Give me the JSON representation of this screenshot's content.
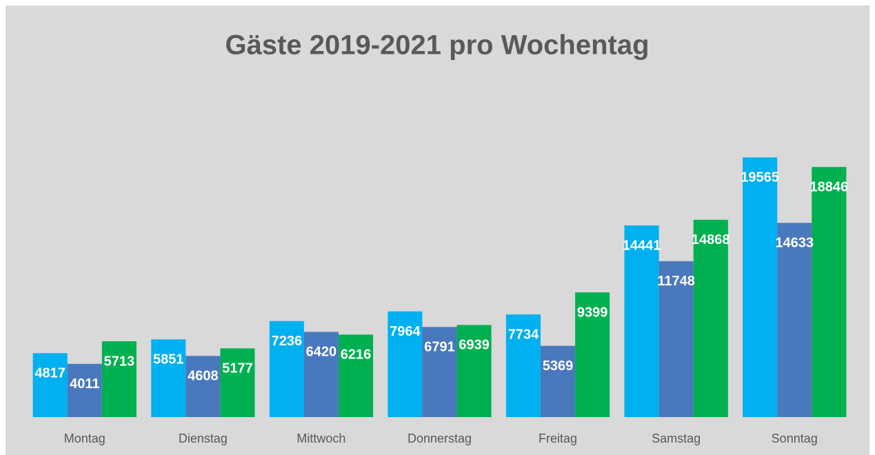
{
  "chart_data": {
    "type": "bar",
    "title": "Gäste 2019-2021 pro Wochentag",
    "categories": [
      "Montag",
      "Dienstag",
      "Mittwoch",
      "Donnerstag",
      "Freitag",
      "Samstag",
      "Sonntag"
    ],
    "series": [
      {
        "color": "#00b0f0",
        "values": [
          4817,
          5851,
          7236,
          7964,
          7734,
          14441,
          19565
        ]
      },
      {
        "color": "#4a78bd",
        "values": [
          4011,
          4608,
          6420,
          6791,
          5369,
          11748,
          14633
        ]
      },
      {
        "color": "#00b050",
        "values": [
          5713,
          5177,
          6216,
          6939,
          9399,
          14868,
          18846
        ]
      }
    ],
    "ylim": [
      0,
      20000
    ]
  }
}
